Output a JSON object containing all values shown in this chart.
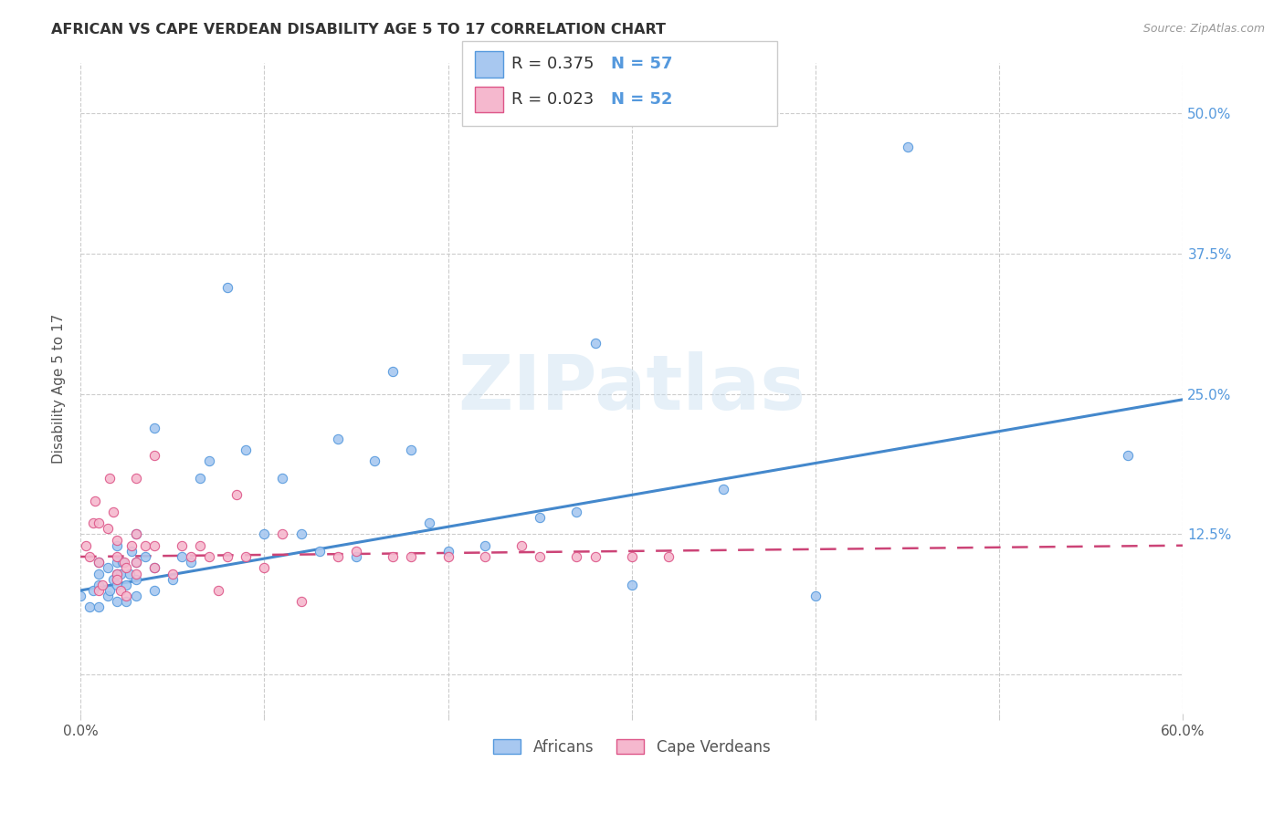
{
  "title": "AFRICAN VS CAPE VERDEAN DISABILITY AGE 5 TO 17 CORRELATION CHART",
  "source": "Source: ZipAtlas.com",
  "ylabel": "Disability Age 5 to 17",
  "xlim": [
    0.0,
    0.6
  ],
  "ylim": [
    -0.035,
    0.545
  ],
  "xticks": [
    0.0,
    0.1,
    0.2,
    0.3,
    0.4,
    0.5,
    0.6
  ],
  "xtick_labels": [
    "0.0%",
    "",
    "",
    "",
    "",
    "",
    "60.0%"
  ],
  "yticks": [
    0.0,
    0.125,
    0.25,
    0.375,
    0.5
  ],
  "ytick_labels": [
    "",
    "12.5%",
    "25.0%",
    "37.5%",
    "50.0%"
  ],
  "africans_color": "#a8c8f0",
  "africans_edge_color": "#5599dd",
  "cape_verdeans_color": "#f5b8ce",
  "cape_verdeans_edge_color": "#dd5588",
  "africans_line_color": "#4488cc",
  "cape_verdeans_line_color": "#cc4477",
  "watermark": "ZIPatlas",
  "africans_x": [
    0.0,
    0.005,
    0.007,
    0.01,
    0.01,
    0.01,
    0.01,
    0.015,
    0.015,
    0.016,
    0.018,
    0.02,
    0.02,
    0.02,
    0.02,
    0.02,
    0.022,
    0.023,
    0.025,
    0.025,
    0.027,
    0.028,
    0.03,
    0.03,
    0.03,
    0.03,
    0.035,
    0.04,
    0.04,
    0.04,
    0.05,
    0.055,
    0.06,
    0.065,
    0.07,
    0.08,
    0.09,
    0.1,
    0.11,
    0.12,
    0.13,
    0.14,
    0.15,
    0.16,
    0.17,
    0.18,
    0.19,
    0.2,
    0.22,
    0.25,
    0.27,
    0.28,
    0.3,
    0.35,
    0.4,
    0.45,
    0.57
  ],
  "africans_y": [
    0.07,
    0.06,
    0.075,
    0.08,
    0.09,
    0.1,
    0.06,
    0.07,
    0.095,
    0.075,
    0.085,
    0.065,
    0.08,
    0.09,
    0.1,
    0.115,
    0.09,
    0.1,
    0.065,
    0.08,
    0.09,
    0.11,
    0.07,
    0.085,
    0.1,
    0.125,
    0.105,
    0.075,
    0.095,
    0.22,
    0.085,
    0.105,
    0.1,
    0.175,
    0.19,
    0.345,
    0.2,
    0.125,
    0.175,
    0.125,
    0.11,
    0.21,
    0.105,
    0.19,
    0.27,
    0.2,
    0.135,
    0.11,
    0.115,
    0.14,
    0.145,
    0.295,
    0.08,
    0.165,
    0.07,
    0.47,
    0.195
  ],
  "cape_verdeans_x": [
    0.003,
    0.005,
    0.007,
    0.008,
    0.01,
    0.01,
    0.01,
    0.012,
    0.015,
    0.016,
    0.018,
    0.02,
    0.02,
    0.02,
    0.02,
    0.022,
    0.024,
    0.025,
    0.025,
    0.028,
    0.03,
    0.03,
    0.03,
    0.03,
    0.035,
    0.04,
    0.04,
    0.04,
    0.05,
    0.055,
    0.06,
    0.065,
    0.07,
    0.075,
    0.08,
    0.085,
    0.09,
    0.1,
    0.11,
    0.12,
    0.14,
    0.15,
    0.17,
    0.18,
    0.2,
    0.22,
    0.24,
    0.25,
    0.27,
    0.28,
    0.3,
    0.32
  ],
  "cape_verdeans_y": [
    0.115,
    0.105,
    0.135,
    0.155,
    0.075,
    0.1,
    0.135,
    0.08,
    0.13,
    0.175,
    0.145,
    0.09,
    0.105,
    0.085,
    0.12,
    0.075,
    0.1,
    0.07,
    0.095,
    0.115,
    0.09,
    0.1,
    0.125,
    0.175,
    0.115,
    0.095,
    0.115,
    0.195,
    0.09,
    0.115,
    0.105,
    0.115,
    0.105,
    0.075,
    0.105,
    0.16,
    0.105,
    0.095,
    0.125,
    0.065,
    0.105,
    0.11,
    0.105,
    0.105,
    0.105,
    0.105,
    0.115,
    0.105,
    0.105,
    0.105,
    0.105,
    0.105
  ],
  "africans_trend_x": [
    0.0,
    0.6
  ],
  "africans_trend_y": [
    0.075,
    0.245
  ],
  "cape_verdeans_trend_x": [
    0.0,
    0.6
  ],
  "cape_verdeans_trend_y": [
    0.105,
    0.115
  ]
}
